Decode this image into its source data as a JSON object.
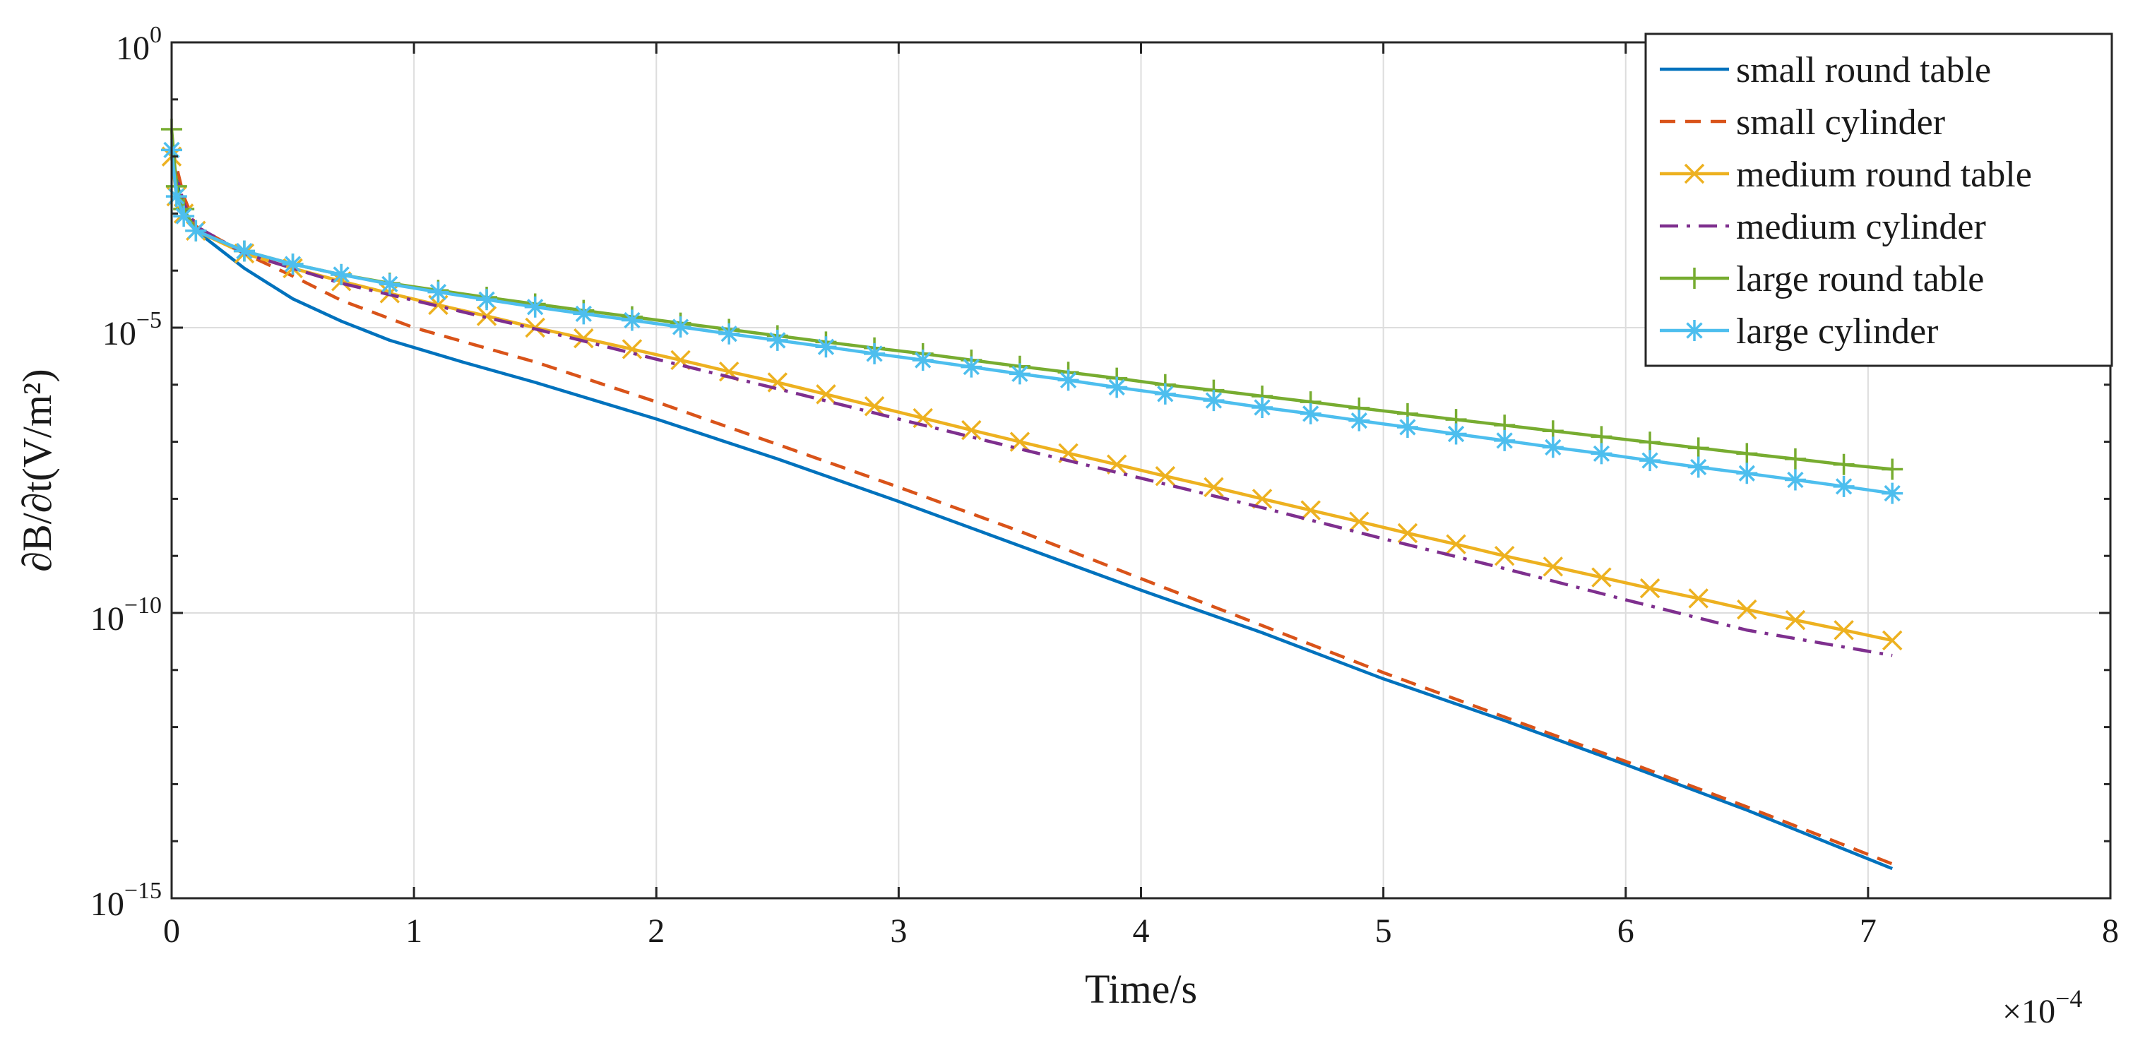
{
  "chart_data": {
    "type": "line",
    "xlabel": "Time/s",
    "ylabel": "∂B/∂t(V/m²)",
    "x_multiplier": "×10^-4",
    "x_multiplier_base": "×10",
    "x_multiplier_exp": "−4",
    "xlim": [
      0,
      8
    ],
    "ylim": [
      1e-15,
      1
    ],
    "yscale": "log",
    "grid": true,
    "legend_position": "top-right",
    "x_ticks": [
      "0",
      "1",
      "2",
      "3",
      "4",
      "5",
      "6",
      "7",
      "8"
    ],
    "y_ticks": [
      {
        "value": 1e-15,
        "base": "10",
        "exp": "−15"
      },
      {
        "value": 1e-10,
        "base": "10",
        "exp": "−10"
      },
      {
        "value": 1e-05,
        "base": "10",
        "exp": "−5"
      },
      {
        "value": 1,
        "base": "10",
        "exp": "0"
      }
    ],
    "series": [
      {
        "name": "small round table",
        "color": "#0072BD",
        "dash": "solid",
        "marker": "none",
        "x": [
          0,
          0.05,
          0.1,
          0.3,
          0.5,
          0.7,
          0.9,
          1.2,
          1.5,
          2.0,
          2.5,
          3.0,
          3.5,
          4.0,
          4.5,
          5.0,
          5.5,
          6.0,
          6.5,
          7.1
        ],
        "y": [
          0.01,
          0.001,
          0.0005,
          0.00011,
          3.2e-05,
          1.3e-05,
          6e-06,
          2.5e-06,
          1.1e-06,
          2.5e-07,
          5e-08,
          9e-09,
          1.5e-09,
          2.5e-10,
          4.5e-11,
          7e-12,
          1.3e-12,
          2.2e-13,
          3.5e-14,
          3.3e-15
        ]
      },
      {
        "name": "small cylinder",
        "color": "#D95319",
        "dash": "dashed",
        "marker": "none",
        "x": [
          0,
          0.05,
          0.1,
          0.3,
          0.5,
          0.7,
          1.0,
          1.5,
          2.0,
          2.5,
          3.0,
          3.5,
          4.0,
          4.5,
          5.0,
          5.5,
          6.0,
          6.5,
          7.1
        ],
        "y": [
          0.015,
          0.002,
          0.0006,
          0.0002,
          8e-05,
          3e-05,
          1e-05,
          2.5e-06,
          5e-07,
          9e-08,
          1.6e-08,
          2.7e-09,
          4e-10,
          6e-11,
          9e-12,
          1.5e-12,
          2.5e-13,
          4e-14,
          4e-15
        ]
      },
      {
        "name": "medium round table",
        "color": "#EDB120",
        "dash": "solid",
        "marker": "x",
        "x": [
          0,
          0.02,
          0.05,
          0.1,
          0.3,
          0.5,
          0.7,
          0.9,
          1.1,
          1.3,
          1.5,
          1.7,
          1.9,
          2.1,
          2.3,
          2.5,
          2.7,
          2.9,
          3.1,
          3.3,
          3.5,
          3.7,
          3.9,
          4.1,
          4.3,
          4.5,
          4.7,
          4.9,
          5.1,
          5.3,
          5.5,
          5.7,
          5.9,
          6.1,
          6.3,
          6.5,
          6.7,
          6.9,
          7.1
        ],
        "y": [
          0.01,
          0.002,
          0.001,
          0.0005,
          0.0002,
          0.00011,
          6.5e-05,
          4e-05,
          2.5e-05,
          1.6e-05,
          1e-05,
          6.5e-06,
          4.2e-06,
          2.7e-06,
          1.7e-06,
          1.1e-06,
          6.8e-07,
          4.2e-07,
          2.6e-07,
          1.6e-07,
          1e-07,
          6.3e-08,
          4e-08,
          2.5e-08,
          1.6e-08,
          1e-08,
          6.3e-09,
          4e-09,
          2.5e-09,
          1.6e-09,
          1e-09,
          6.5e-10,
          4.2e-10,
          2.7e-10,
          1.8e-10,
          1.15e-10,
          7.5e-11,
          5e-11,
          3.3e-11
        ]
      },
      {
        "name": "medium cylinder",
        "color": "#7E2F8E",
        "dash": "dashdot",
        "marker": "none",
        "x": [
          0,
          0.05,
          0.1,
          0.3,
          0.5,
          0.7,
          1.0,
          1.5,
          2.0,
          2.5,
          3.0,
          3.5,
          4.0,
          4.5,
          5.0,
          5.5,
          6.0,
          6.5,
          7.1
        ],
        "y": [
          0.01,
          0.0015,
          0.0006,
          0.0002,
          0.00011,
          6e-05,
          3e-05,
          9.5e-06,
          2.8e-06,
          8.5e-07,
          2.5e-07,
          7.5e-08,
          2.3e-08,
          7e-09,
          2e-09,
          6e-10,
          1.7e-10,
          5e-11,
          1.8e-11
        ]
      },
      {
        "name": "large round table",
        "color": "#77AC30",
        "dash": "solid",
        "marker": "+",
        "x": [
          0,
          0.02,
          0.05,
          0.1,
          0.3,
          0.5,
          0.7,
          0.9,
          1.1,
          1.3,
          1.5,
          1.7,
          1.9,
          2.1,
          2.3,
          2.5,
          2.7,
          2.9,
          3.1,
          3.3,
          3.5,
          3.7,
          3.9,
          4.1,
          4.3,
          4.5,
          4.7,
          4.9,
          5.1,
          5.3,
          5.5,
          5.7,
          5.9,
          6.1,
          6.3,
          6.5,
          6.7,
          6.9,
          7.1
        ],
        "y": [
          0.03,
          0.003,
          0.0012,
          0.0005,
          0.00022,
          0.00013,
          8.5e-05,
          6e-05,
          4.5e-05,
          3.4e-05,
          2.6e-05,
          2e-05,
          1.55e-05,
          1.2e-05,
          9.3e-06,
          7.2e-06,
          5.6e-06,
          4.4e-06,
          3.5e-06,
          2.7e-06,
          2.1e-06,
          1.65e-06,
          1.3e-06,
          1e-06,
          8e-07,
          6.3e-07,
          5e-07,
          3.9e-07,
          3.1e-07,
          2.45e-07,
          1.95e-07,
          1.55e-07,
          1.23e-07,
          9.8e-08,
          7.8e-08,
          6.2e-08,
          5e-08,
          4e-08,
          3.3e-08
        ]
      },
      {
        "name": "large cylinder",
        "color": "#4DBEEE",
        "dash": "solid",
        "marker": "*",
        "x": [
          0,
          0.02,
          0.05,
          0.1,
          0.3,
          0.5,
          0.7,
          0.9,
          1.1,
          1.3,
          1.5,
          1.7,
          1.9,
          2.1,
          2.3,
          2.5,
          2.7,
          2.9,
          3.1,
          3.3,
          3.5,
          3.7,
          3.9,
          4.1,
          4.3,
          4.5,
          4.7,
          4.9,
          5.1,
          5.3,
          5.5,
          5.7,
          5.9,
          6.1,
          6.3,
          6.5,
          6.7,
          6.9,
          7.1
        ],
        "y": [
          0.013,
          0.002,
          0.0009,
          0.0005,
          0.00022,
          0.00013,
          8.5e-05,
          5.8e-05,
          4.2e-05,
          3.1e-05,
          2.3e-05,
          1.75e-05,
          1.35e-05,
          1.03e-05,
          7.8e-06,
          6e-06,
          4.6e-06,
          3.5e-06,
          2.7e-06,
          2.05e-06,
          1.55e-06,
          1.2e-06,
          9e-07,
          6.9e-07,
          5.3e-07,
          4e-07,
          3.1e-07,
          2.35e-07,
          1.8e-07,
          1.37e-07,
          1.05e-07,
          8e-08,
          6.2e-08,
          4.7e-08,
          3.6e-08,
          2.8e-08,
          2.15e-08,
          1.65e-08,
          1.25e-08
        ]
      }
    ]
  }
}
